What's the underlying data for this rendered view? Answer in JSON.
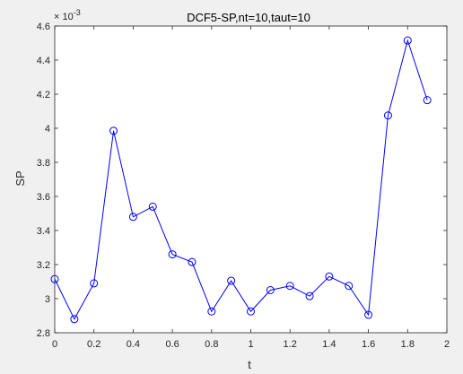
{
  "chart_data": {
    "type": "line",
    "title": "DCF5-SP,nt=10,taut=10",
    "xlabel": "t",
    "ylabel": "SP",
    "exponent_label": {
      "base": "× 10",
      "power": "-3"
    },
    "xlim": [
      0,
      2
    ],
    "ylim": [
      2.8,
      4.6
    ],
    "xticks": [
      0,
      0.2,
      0.4,
      0.6,
      0.8,
      1,
      1.2,
      1.4,
      1.6,
      1.8,
      2
    ],
    "xtick_labels": [
      "0",
      "0.2",
      "0.4",
      "0.6",
      "0.8",
      "1",
      "1.2",
      "1.4",
      "1.6",
      "1.8",
      "2"
    ],
    "yticks": [
      2.8,
      3,
      3.2,
      3.4,
      3.6,
      3.8,
      4,
      4.2,
      4.4,
      4.6
    ],
    "ytick_labels": [
      "2.8",
      "3",
      "3.2",
      "3.4",
      "3.6",
      "3.8",
      "4",
      "4.2",
      "4.4",
      "4.6"
    ],
    "grid": false,
    "series": [
      {
        "marker": "circle",
        "color": "#0000ff",
        "x": [
          0,
          0.1,
          0.2,
          0.3,
          0.4,
          0.5,
          0.6,
          0.7,
          0.8,
          0.9,
          1,
          1.1,
          1.2,
          1.3,
          1.4,
          1.5,
          1.6,
          1.7,
          1.8,
          1.9
        ],
        "y": [
          3.115,
          2.88,
          3.09,
          3.985,
          3.48,
          3.54,
          3.26,
          3.215,
          2.925,
          3.105,
          2.925,
          3.05,
          3.075,
          3.015,
          3.13,
          3.075,
          2.905,
          4.075,
          4.515,
          4.165
        ]
      }
    ]
  }
}
